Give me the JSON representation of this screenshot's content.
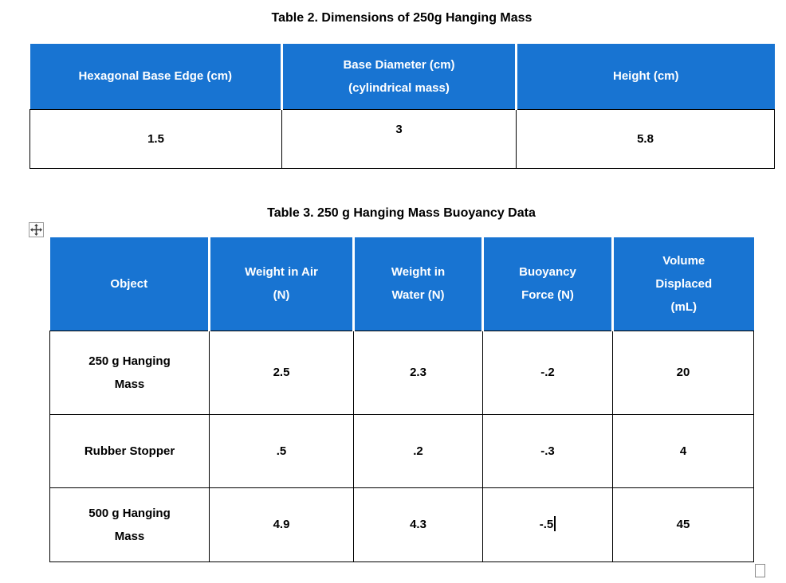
{
  "colors": {
    "header_bg": "#1874D2",
    "header_text": "#ffffff",
    "body_text": "#000000",
    "border": "#000000",
    "page_bg": "#ffffff"
  },
  "icons": {
    "move_handle": "four-direction-move-arrows",
    "resize_handle": "small-square-outline"
  },
  "table2": {
    "title": "Table 2. Dimensions of 250g Hanging Mass",
    "headers": [
      {
        "lines": [
          "Hexagonal Base Edge (cm)"
        ]
      },
      {
        "lines": [
          "Base Diameter (cm)",
          "(cylindrical mass)"
        ]
      },
      {
        "lines": [
          "Height (cm)"
        ]
      }
    ],
    "rows": [
      {
        "cells": [
          "1.5",
          "3",
          "5.8"
        ]
      }
    ]
  },
  "table3": {
    "title": "Table 3. 250 g Hanging Mass Buoyancy Data",
    "headers": [
      {
        "lines": [
          "Object"
        ]
      },
      {
        "lines": [
          "Weight in Air",
          "(N)"
        ]
      },
      {
        "lines": [
          "Weight in",
          "Water (N)"
        ]
      },
      {
        "lines": [
          "Buoyancy",
          "Force (N)"
        ]
      },
      {
        "lines": [
          "Volume",
          "Displaced",
          "(mL)"
        ]
      }
    ],
    "rows": [
      {
        "object": [
          "250 g Hanging",
          "Mass"
        ],
        "weight_air": "2.5",
        "weight_water": "2.3",
        "buoyancy_force": "-.2",
        "volume_displaced": "20"
      },
      {
        "object": [
          "Rubber Stopper"
        ],
        "weight_air": ".5",
        "weight_water": ".2",
        "buoyancy_force": "-.3",
        "volume_displaced": "4"
      },
      {
        "object": [
          "500 g Hanging",
          "Mass"
        ],
        "weight_air": "4.9",
        "weight_water": "4.3",
        "buoyancy_force": "-.5",
        "volume_displaced": "45"
      }
    ]
  }
}
